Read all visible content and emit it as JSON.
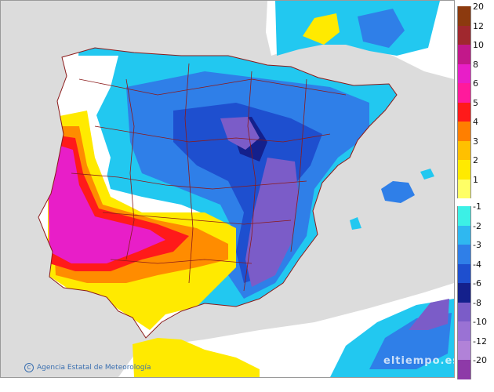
{
  "credit": {
    "text": "Agencia Estatal de Meteorología",
    "icon": "copyright-icon"
  },
  "watermark": {
    "text": "eltiempo.es"
  },
  "colors": {
    "sea": "#dcdcdc",
    "land_base": "#ffffff",
    "border": "#8b1a1a",
    "cold_light": "#22c8f0",
    "cold_mid": "#2f7fe8",
    "cold_dark": "#1a3fb0",
    "cold_deep": "#233c9c",
    "purple": "#7b5cc8",
    "warm_yellow": "#ffea00",
    "warm_orange": "#ff8c00",
    "warm_red": "#ff1a1a",
    "warm_magenta": "#e81ec8"
  },
  "legend": {
    "position": "right",
    "warm": [
      {
        "label": "20",
        "color": "#8c3a0e"
      },
      {
        "label": "12",
        "color": "#a0282e"
      },
      {
        "label": "10",
        "color": "#c2188a"
      },
      {
        "label": "8",
        "color": "#e81ec8"
      },
      {
        "label": "6",
        "color": "#ff1a9c"
      },
      {
        "label": "5",
        "color": "#ff1a1a"
      },
      {
        "label": "4",
        "color": "#ff7f00"
      },
      {
        "label": "3",
        "color": "#ffc000"
      },
      {
        "label": "2",
        "color": "#ffea00"
      },
      {
        "label": "1",
        "color": "#ffff66"
      }
    ],
    "cold": [
      {
        "label": "-1",
        "color": "#3cf0e6"
      },
      {
        "label": "-2",
        "color": "#2fb8f0"
      },
      {
        "label": "-3",
        "color": "#2f7fe8"
      },
      {
        "label": "-4",
        "color": "#1e4fcf"
      },
      {
        "label": "-6",
        "color": "#14208c"
      },
      {
        "label": "-8",
        "color": "#7b5cc8"
      },
      {
        "label": "-10",
        "color": "#9a72d4"
      },
      {
        "label": "-12",
        "color": "#b182d8"
      },
      {
        "label": "-20",
        "color": "#8e3aa8"
      }
    ]
  }
}
